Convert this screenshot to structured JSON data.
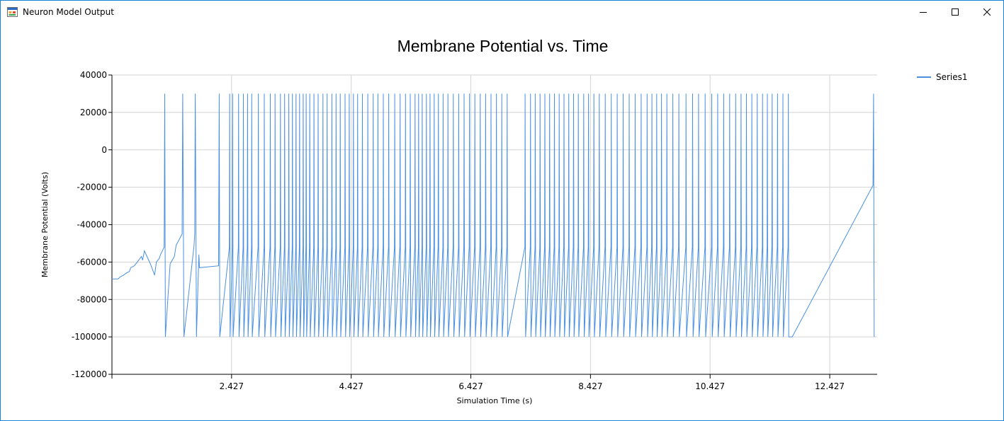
{
  "window": {
    "title": "Neuron Model Output",
    "icon": "app-window-icon",
    "controls": [
      "minimize-icon",
      "maximize-icon",
      "close-icon"
    ]
  },
  "chart_data": {
    "type": "line",
    "title": "Membrane Potential vs. Time",
    "xlabel": "Simulation Time (s)",
    "ylabel": "Membrane Potential (Volts)",
    "ylim": [
      -120000,
      40000
    ],
    "xlim": [
      0.427,
      13.22
    ],
    "x_ticks": [
      2.427,
      4.427,
      6.427,
      8.427,
      10.427,
      12.427
    ],
    "x_tick_labels": [
      "2.427",
      "4.427",
      "6.427",
      "8.427",
      "10.427",
      "12.427"
    ],
    "y_ticks": [
      40000,
      20000,
      0,
      -20000,
      -40000,
      -60000,
      -80000,
      -100000,
      -120000
    ],
    "y_tick_labels": [
      "40000",
      "20000",
      "0",
      "-20000",
      "-40000",
      "-60000",
      "-80000",
      "-100000",
      "-120000"
    ],
    "grid": true,
    "legend_position": "top-right",
    "series": [
      {
        "name": "Series1",
        "color": "#4a90e2",
        "prelude": [
          [
            0.427,
            -69000
          ],
          [
            0.53,
            -69000
          ],
          [
            0.56,
            -68000
          ],
          [
            0.62,
            -67000
          ],
          [
            0.66,
            -66000
          ],
          [
            0.72,
            -65000
          ],
          [
            0.74,
            -63000
          ],
          [
            0.8,
            -62000
          ],
          [
            0.85,
            -60000
          ],
          [
            0.92,
            -57000
          ],
          [
            0.94,
            -59000
          ],
          [
            0.97,
            -54000
          ],
          [
            1.07,
            -61000
          ],
          [
            1.14,
            -67000
          ],
          [
            1.17,
            -60000
          ],
          [
            1.22,
            -58000
          ],
          [
            1.24,
            -56000
          ],
          [
            1.3,
            -52000
          ],
          [
            1.31,
            30000
          ],
          [
            1.32,
            -100000
          ],
          [
            1.4,
            -61000
          ],
          [
            1.47,
            -57000
          ],
          [
            1.5,
            -51000
          ],
          [
            1.6,
            -45000
          ],
          [
            1.61,
            30000
          ],
          [
            1.63,
            -100000
          ],
          [
            1.8,
            -51000
          ],
          [
            1.81,
            -45000
          ],
          [
            1.82,
            30000
          ],
          [
            1.84,
            -100000
          ],
          [
            1.88,
            -56000
          ],
          [
            1.89,
            -63000
          ],
          [
            2.21,
            -62000
          ],
          [
            2.22,
            30000
          ],
          [
            2.23,
            -100000
          ]
        ],
        "spike_times": [
          2.39,
          2.44,
          2.54,
          2.62,
          2.69,
          2.76,
          2.87,
          2.97,
          3.07,
          3.15,
          3.24,
          3.31,
          3.38,
          3.44,
          3.5,
          3.56,
          3.62,
          3.67,
          3.73,
          3.8,
          3.87,
          3.95,
          4.02,
          4.1,
          4.17,
          4.24,
          4.32,
          4.39,
          4.46,
          4.53,
          4.61,
          4.7,
          4.79,
          4.87,
          4.96,
          5.05,
          5.15,
          5.24,
          5.33,
          5.41,
          5.49,
          5.55,
          5.61,
          5.68,
          5.74,
          5.81,
          5.88,
          5.96,
          6.04,
          6.13,
          6.22,
          6.31,
          6.4,
          6.49,
          6.58,
          6.67,
          6.76,
          6.85,
          6.94,
          7.03,
          7.33,
          7.42,
          7.5,
          7.58,
          7.66,
          7.74,
          7.82,
          7.9,
          7.98,
          8.06,
          8.14,
          8.22,
          8.31,
          8.39,
          8.48,
          8.57,
          8.67,
          8.77,
          8.87,
          8.97,
          9.07,
          9.17,
          9.27,
          9.37,
          9.45,
          9.53,
          9.61,
          9.7,
          9.8,
          9.9,
          10.02,
          10.13,
          10.23,
          10.34,
          10.45,
          10.55,
          10.65,
          10.75,
          10.85,
          10.94,
          11.03,
          11.12,
          11.21,
          11.3,
          11.38,
          11.46,
          11.55,
          11.64,
          11.73
        ],
        "tail": [
          [
            11.8,
            -100000
          ],
          [
            13.15,
            -19000
          ],
          [
            13.16,
            30000
          ],
          [
            13.17,
            -100000
          ]
        ]
      }
    ]
  }
}
